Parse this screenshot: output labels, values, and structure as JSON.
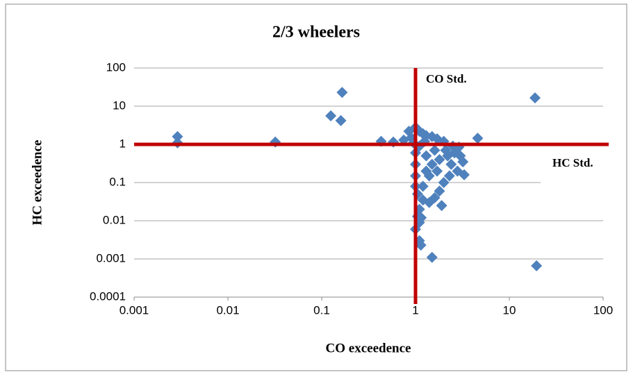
{
  "chart_data": {
    "type": "scatter",
    "title": "2/3 wheelers",
    "x_label": "CO exceedence",
    "y_label": "HC exceedence",
    "x_log": true,
    "y_log": true,
    "grid": true,
    "color": "#4f81bd",
    "xlim": [
      0.001,
      100
    ],
    "xticks": [
      0.001,
      0.01,
      0.1,
      1,
      10,
      100
    ],
    "ylim": [
      0.0001,
      100
    ],
    "yticks": [
      0.0001,
      0.001,
      0.01,
      0.1,
      1,
      10,
      100
    ],
    "reference_lines": [
      {
        "axis": "x",
        "value": 1,
        "label": "CO Std.",
        "color": "#c00000"
      },
      {
        "axis": "y",
        "value": 1,
        "label": "HC Std.",
        "color": "#c00000"
      }
    ],
    "x": [
      0.0029,
      0.0029,
      0.032,
      0.125,
      0.165,
      0.16,
      0.43,
      0.58,
      18.8,
      19.5,
      4.6,
      1.5,
      1.1,
      1.14,
      0.85,
      0.9,
      1.0,
      1.1,
      1.2,
      1.3,
      1.5,
      1.7,
      2.0,
      2.5,
      2.9,
      3.0,
      3.2,
      3.3,
      2.8,
      2.4,
      2.0,
      1.8,
      1.6,
      1.9,
      1.4,
      1.2,
      1.05,
      1.0,
      1.0,
      1.0,
      1.0,
      1.1,
      1.3,
      1.5,
      1.7,
      2.2,
      2.6,
      1.4,
      1.2,
      1.1,
      1.05,
      1.1,
      1.0,
      1.15,
      0.75,
      0.95,
      1.6,
      2.1,
      1.8,
      2.3,
      1.3,
      1.25
    ],
    "y": [
      1.6,
      1.1,
      1.15,
      5.6,
      23,
      4.2,
      1.2,
      1.15,
      16.5,
      0.00066,
      1.45,
      0.0011,
      0.003,
      0.0023,
      2.2,
      1.5,
      2.8,
      2.2,
      1.9,
      1.7,
      1.6,
      1.4,
      1.2,
      0.9,
      0.85,
      0.5,
      0.35,
      0.16,
      0.2,
      0.3,
      0.1,
      0.06,
      0.04,
      0.025,
      0.03,
      0.035,
      0.05,
      0.08,
      0.15,
      0.3,
      0.6,
      0.9,
      0.5,
      0.3,
      0.2,
      0.5,
      0.6,
      0.15,
      0.08,
      0.02,
      0.013,
      0.009,
      0.006,
      0.012,
      1.3,
      1.1,
      0.7,
      0.7,
      0.4,
      0.15,
      0.2,
      1.2
    ]
  }
}
